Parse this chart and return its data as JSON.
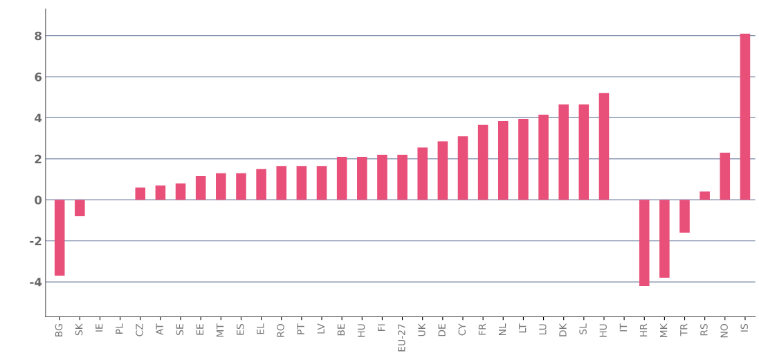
{
  "chart_data": {
    "type": "bar",
    "categories": [
      "BG",
      "SK",
      "IE",
      "PL",
      "CZ",
      "AT",
      "SE",
      "EE",
      "MT",
      "ES",
      "EL",
      "RO",
      "PT",
      "LV",
      "BE",
      "HU",
      "FI",
      "EU-27",
      "UK",
      "DE",
      "CY",
      "FR",
      "NL",
      "LT",
      "LU",
      "DK",
      "SL",
      "HU",
      "IT",
      "HR",
      "MK",
      "TR",
      "RS",
      "NO",
      "IS"
    ],
    "values": [
      -3.7,
      -0.8,
      0,
      0,
      0.6,
      0.7,
      0.8,
      1.15,
      1.3,
      1.3,
      1.5,
      1.65,
      1.65,
      1.65,
      2.1,
      2.1,
      2.2,
      2.2,
      2.55,
      2.85,
      3.1,
      3.65,
      3.85,
      3.95,
      4.15,
      4.65,
      4.65,
      5.2,
      0,
      -4.2,
      -3.8,
      -1.6,
      0.4,
      2.3,
      8.1
    ],
    "color": "#e8507a",
    "ylim": [
      -5.7,
      9.3
    ],
    "yticks": [
      -4,
      -2,
      0,
      2,
      4,
      6,
      8
    ],
    "grid": "y"
  }
}
